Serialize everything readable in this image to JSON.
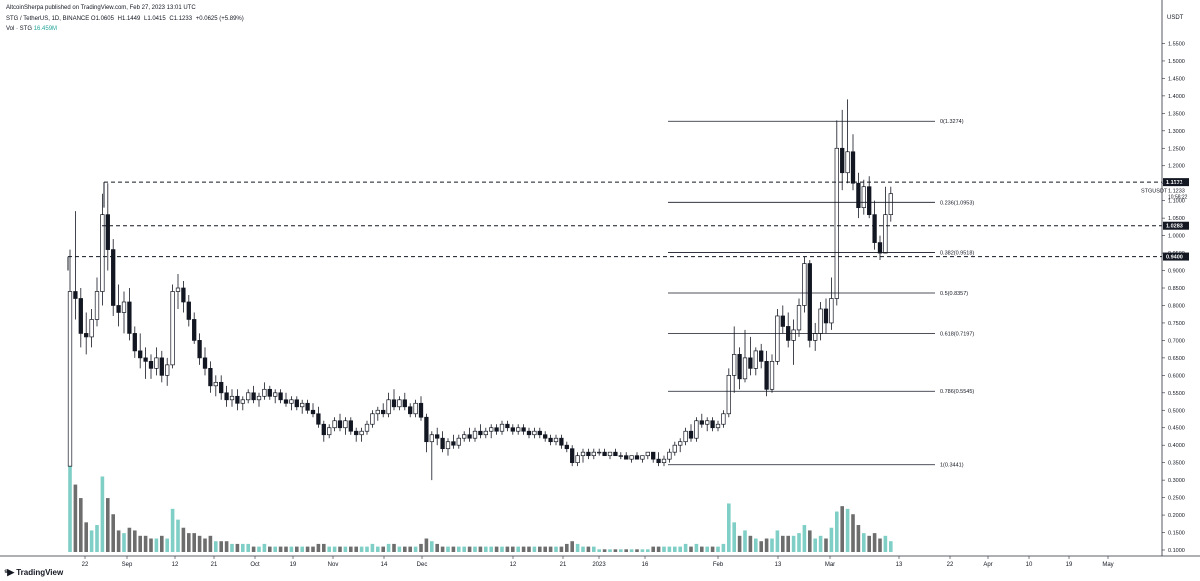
{
  "header": {
    "published_line": "AltcoinSherpa published on TradingView.com, Feb 27, 2023 13:01 UTC",
    "symbol_line": "STG / TetherUS, 1D, BINANCE",
    "ohlc": {
      "open": "O1.0605",
      "high": "H1.1449",
      "low": "L1.0415",
      "close": "C1.1233",
      "change": "+0.0625 (+5.89%)"
    },
    "volume_label": "Vol · STG",
    "volume_value": "16.459M"
  },
  "price_axis": {
    "currency": "USDT",
    "labels": [
      "1.5500",
      "1.5000",
      "1.4500",
      "1.4000",
      "1.3500",
      "1.3000",
      "1.2500",
      "1.2000",
      "1.1500",
      "1.1000",
      "1.0500",
      "1.0000",
      "0.9500",
      "0.9000",
      "0.8500",
      "0.8000",
      "0.7500",
      "0.7000",
      "0.6500",
      "0.6000",
      "0.5500",
      "0.5000",
      "0.4500",
      "0.4000",
      "0.3500",
      "0.3000",
      "0.2500",
      "0.2000",
      "0.1500",
      "0.1000"
    ],
    "last_price_label": "STGUSDT",
    "last_price": "1.1233",
    "countdown": "10:58:22",
    "levels": [
      {
        "price": 1.1531,
        "label": "1.1531"
      },
      {
        "price": 1.0283,
        "label": "1.0283"
      },
      {
        "price": 0.94,
        "label": "0.9400"
      }
    ]
  },
  "time_axis": {
    "labels": [
      "22",
      "Sep",
      "12",
      "21",
      "Oct",
      "19",
      "Nov",
      "14",
      "Dec",
      "12",
      "21",
      "2023",
      "16",
      "Feb",
      "13",
      "Mar",
      "13",
      "22",
      "Apr",
      "10",
      "19",
      "May"
    ]
  },
  "fibonacci": [
    {
      "ratio": 0,
      "price": 1.3274,
      "label": "0(1.3274)"
    },
    {
      "ratio": 0.236,
      "price": 1.0953,
      "label": "0.236(1.0953)"
    },
    {
      "ratio": 0.382,
      "price": 0.9518,
      "label": "0.382(0.9518)"
    },
    {
      "ratio": 0.5,
      "price": 0.8357,
      "label": "0.5(0.8357)"
    },
    {
      "ratio": 0.618,
      "price": 0.7197,
      "label": "0.618(0.7197)"
    },
    {
      "ratio": 0.786,
      "price": 0.5545,
      "label": "0.786(0.5545)"
    },
    {
      "ratio": 1,
      "price": 0.3441,
      "label": "1(0.3441)"
    }
  ],
  "chart_data": {
    "type": "candlestick",
    "symbol": "STG / TetherUS",
    "interval": "1D",
    "y_range": [
      0.1,
      1.58
    ],
    "candles": [
      {
        "o": 0.34,
        "h": 0.96,
        "l": 0.34,
        "c": 0.84,
        "v": 0.33
      },
      {
        "o": 0.84,
        "h": 1.07,
        "l": 0.76,
        "c": 0.82,
        "v": 0.25
      },
      {
        "o": 0.82,
        "h": 0.85,
        "l": 0.68,
        "c": 0.72,
        "v": 0.2
      },
      {
        "o": 0.72,
        "h": 0.78,
        "l": 0.66,
        "c": 0.71,
        "v": 0.11
      },
      {
        "o": 0.71,
        "h": 0.79,
        "l": 0.68,
        "c": 0.76,
        "v": 0.08
      },
      {
        "o": 0.76,
        "h": 0.88,
        "l": 0.74,
        "c": 0.84,
        "v": 0.1
      },
      {
        "o": 0.84,
        "h": 1.12,
        "l": 0.8,
        "c": 1.06,
        "v": 0.28
      },
      {
        "o": 1.06,
        "h": 1.15,
        "l": 0.9,
        "c": 0.96,
        "v": 0.2
      },
      {
        "o": 0.96,
        "h": 0.99,
        "l": 0.77,
        "c": 0.8,
        "v": 0.14
      },
      {
        "o": 0.8,
        "h": 0.86,
        "l": 0.74,
        "c": 0.78,
        "v": 0.08
      },
      {
        "o": 0.78,
        "h": 0.84,
        "l": 0.72,
        "c": 0.81,
        "v": 0.07
      },
      {
        "o": 0.81,
        "h": 0.85,
        "l": 0.7,
        "c": 0.72,
        "v": 0.09
      },
      {
        "o": 0.72,
        "h": 0.74,
        "l": 0.65,
        "c": 0.67,
        "v": 0.08
      },
      {
        "o": 0.67,
        "h": 0.72,
        "l": 0.62,
        "c": 0.65,
        "v": 0.06
      },
      {
        "o": 0.65,
        "h": 0.68,
        "l": 0.59,
        "c": 0.64,
        "v": 0.06
      },
      {
        "o": 0.64,
        "h": 0.66,
        "l": 0.59,
        "c": 0.62,
        "v": 0.05
      },
      {
        "o": 0.62,
        "h": 0.68,
        "l": 0.6,
        "c": 0.65,
        "v": 0.05
      },
      {
        "o": 0.65,
        "h": 0.67,
        "l": 0.58,
        "c": 0.6,
        "v": 0.06
      },
      {
        "o": 0.6,
        "h": 0.65,
        "l": 0.57,
        "c": 0.63,
        "v": 0.05
      },
      {
        "o": 0.63,
        "h": 0.86,
        "l": 0.62,
        "c": 0.84,
        "v": 0.16
      },
      {
        "o": 0.84,
        "h": 0.89,
        "l": 0.79,
        "c": 0.85,
        "v": 0.12
      },
      {
        "o": 0.85,
        "h": 0.87,
        "l": 0.78,
        "c": 0.81,
        "v": 0.09
      },
      {
        "o": 0.81,
        "h": 0.83,
        "l": 0.74,
        "c": 0.76,
        "v": 0.07
      },
      {
        "o": 0.76,
        "h": 0.78,
        "l": 0.69,
        "c": 0.7,
        "v": 0.07
      },
      {
        "o": 0.7,
        "h": 0.72,
        "l": 0.63,
        "c": 0.65,
        "v": 0.06
      },
      {
        "o": 0.65,
        "h": 0.68,
        "l": 0.6,
        "c": 0.62,
        "v": 0.05
      },
      {
        "o": 0.62,
        "h": 0.64,
        "l": 0.55,
        "c": 0.57,
        "v": 0.06
      },
      {
        "o": 0.57,
        "h": 0.6,
        "l": 0.54,
        "c": 0.58,
        "v": 0.04
      },
      {
        "o": 0.58,
        "h": 0.6,
        "l": 0.53,
        "c": 0.55,
        "v": 0.04
      },
      {
        "o": 0.55,
        "h": 0.57,
        "l": 0.51,
        "c": 0.53,
        "v": 0.04
      },
      {
        "o": 0.53,
        "h": 0.56,
        "l": 0.51,
        "c": 0.54,
        "v": 0.03
      },
      {
        "o": 0.54,
        "h": 0.56,
        "l": 0.5,
        "c": 0.52,
        "v": 0.03
      },
      {
        "o": 0.52,
        "h": 0.54,
        "l": 0.5,
        "c": 0.53,
        "v": 0.03
      },
      {
        "o": 0.53,
        "h": 0.56,
        "l": 0.52,
        "c": 0.55,
        "v": 0.03
      },
      {
        "o": 0.55,
        "h": 0.57,
        "l": 0.52,
        "c": 0.53,
        "v": 0.02
      },
      {
        "o": 0.53,
        "h": 0.55,
        "l": 0.51,
        "c": 0.54,
        "v": 0.02
      },
      {
        "o": 0.54,
        "h": 0.58,
        "l": 0.53,
        "c": 0.56,
        "v": 0.03
      },
      {
        "o": 0.56,
        "h": 0.57,
        "l": 0.53,
        "c": 0.54,
        "v": 0.02
      },
      {
        "o": 0.54,
        "h": 0.56,
        "l": 0.52,
        "c": 0.55,
        "v": 0.02
      },
      {
        "o": 0.55,
        "h": 0.56,
        "l": 0.52,
        "c": 0.53,
        "v": 0.02
      },
      {
        "o": 0.53,
        "h": 0.55,
        "l": 0.51,
        "c": 0.52,
        "v": 0.02
      },
      {
        "o": 0.52,
        "h": 0.54,
        "l": 0.5,
        "c": 0.53,
        "v": 0.02
      },
      {
        "o": 0.53,
        "h": 0.54,
        "l": 0.5,
        "c": 0.51,
        "v": 0.02
      },
      {
        "o": 0.51,
        "h": 0.53,
        "l": 0.49,
        "c": 0.52,
        "v": 0.02
      },
      {
        "o": 0.52,
        "h": 0.53,
        "l": 0.49,
        "c": 0.5,
        "v": 0.02
      },
      {
        "o": 0.5,
        "h": 0.52,
        "l": 0.48,
        "c": 0.49,
        "v": 0.02
      },
      {
        "o": 0.49,
        "h": 0.51,
        "l": 0.45,
        "c": 0.46,
        "v": 0.03
      },
      {
        "o": 0.46,
        "h": 0.47,
        "l": 0.41,
        "c": 0.43,
        "v": 0.03
      },
      {
        "o": 0.43,
        "h": 0.46,
        "l": 0.42,
        "c": 0.45,
        "v": 0.02
      },
      {
        "o": 0.45,
        "h": 0.48,
        "l": 0.44,
        "c": 0.47,
        "v": 0.02
      },
      {
        "o": 0.47,
        "h": 0.49,
        "l": 0.44,
        "c": 0.45,
        "v": 0.02
      },
      {
        "o": 0.45,
        "h": 0.48,
        "l": 0.43,
        "c": 0.47,
        "v": 0.02
      },
      {
        "o": 0.47,
        "h": 0.48,
        "l": 0.43,
        "c": 0.44,
        "v": 0.02
      },
      {
        "o": 0.44,
        "h": 0.45,
        "l": 0.41,
        "c": 0.43,
        "v": 0.02
      },
      {
        "o": 0.43,
        "h": 0.45,
        "l": 0.41,
        "c": 0.44,
        "v": 0.02
      },
      {
        "o": 0.44,
        "h": 0.47,
        "l": 0.43,
        "c": 0.46,
        "v": 0.02
      },
      {
        "o": 0.46,
        "h": 0.5,
        "l": 0.45,
        "c": 0.49,
        "v": 0.03
      },
      {
        "o": 0.49,
        "h": 0.51,
        "l": 0.47,
        "c": 0.5,
        "v": 0.02
      },
      {
        "o": 0.5,
        "h": 0.52,
        "l": 0.48,
        "c": 0.49,
        "v": 0.02
      },
      {
        "o": 0.49,
        "h": 0.55,
        "l": 0.48,
        "c": 0.53,
        "v": 0.03
      },
      {
        "o": 0.53,
        "h": 0.56,
        "l": 0.5,
        "c": 0.51,
        "v": 0.03
      },
      {
        "o": 0.51,
        "h": 0.54,
        "l": 0.5,
        "c": 0.53,
        "v": 0.02
      },
      {
        "o": 0.53,
        "h": 0.55,
        "l": 0.5,
        "c": 0.51,
        "v": 0.02
      },
      {
        "o": 0.51,
        "h": 0.52,
        "l": 0.48,
        "c": 0.49,
        "v": 0.02
      },
      {
        "o": 0.49,
        "h": 0.53,
        "l": 0.48,
        "c": 0.52,
        "v": 0.02
      },
      {
        "o": 0.52,
        "h": 0.54,
        "l": 0.47,
        "c": 0.48,
        "v": 0.03
      },
      {
        "o": 0.48,
        "h": 0.49,
        "l": 0.38,
        "c": 0.41,
        "v": 0.05
      },
      {
        "o": 0.41,
        "h": 0.44,
        "l": 0.3,
        "c": 0.43,
        "v": 0.04
      },
      {
        "o": 0.43,
        "h": 0.45,
        "l": 0.4,
        "c": 0.42,
        "v": 0.03
      },
      {
        "o": 0.42,
        "h": 0.44,
        "l": 0.38,
        "c": 0.39,
        "v": 0.02
      },
      {
        "o": 0.39,
        "h": 0.42,
        "l": 0.37,
        "c": 0.41,
        "v": 0.02
      },
      {
        "o": 0.41,
        "h": 0.43,
        "l": 0.39,
        "c": 0.4,
        "v": 0.02
      },
      {
        "o": 0.4,
        "h": 0.43,
        "l": 0.39,
        "c": 0.42,
        "v": 0.02
      },
      {
        "o": 0.42,
        "h": 0.44,
        "l": 0.41,
        "c": 0.43,
        "v": 0.02
      },
      {
        "o": 0.43,
        "h": 0.45,
        "l": 0.41,
        "c": 0.42,
        "v": 0.02
      },
      {
        "o": 0.42,
        "h": 0.45,
        "l": 0.41,
        "c": 0.44,
        "v": 0.02
      },
      {
        "o": 0.44,
        "h": 0.46,
        "l": 0.42,
        "c": 0.43,
        "v": 0.02
      },
      {
        "o": 0.43,
        "h": 0.45,
        "l": 0.42,
        "c": 0.44,
        "v": 0.02
      },
      {
        "o": 0.44,
        "h": 0.46,
        "l": 0.42,
        "c": 0.45,
        "v": 0.02
      },
      {
        "o": 0.45,
        "h": 0.46,
        "l": 0.43,
        "c": 0.44,
        "v": 0.02
      },
      {
        "o": 0.44,
        "h": 0.47,
        "l": 0.43,
        "c": 0.46,
        "v": 0.02
      },
      {
        "o": 0.46,
        "h": 0.47,
        "l": 0.44,
        "c": 0.45,
        "v": 0.02
      },
      {
        "o": 0.45,
        "h": 0.46,
        "l": 0.43,
        "c": 0.44,
        "v": 0.02
      },
      {
        "o": 0.44,
        "h": 0.46,
        "l": 0.43,
        "c": 0.45,
        "v": 0.02
      },
      {
        "o": 0.45,
        "h": 0.46,
        "l": 0.43,
        "c": 0.44,
        "v": 0.02
      },
      {
        "o": 0.44,
        "h": 0.45,
        "l": 0.42,
        "c": 0.43,
        "v": 0.02
      },
      {
        "o": 0.43,
        "h": 0.45,
        "l": 0.42,
        "c": 0.44,
        "v": 0.02
      },
      {
        "o": 0.44,
        "h": 0.45,
        "l": 0.42,
        "c": 0.43,
        "v": 0.02
      },
      {
        "o": 0.43,
        "h": 0.44,
        "l": 0.41,
        "c": 0.42,
        "v": 0.02
      },
      {
        "o": 0.42,
        "h": 0.43,
        "l": 0.4,
        "c": 0.41,
        "v": 0.02
      },
      {
        "o": 0.41,
        "h": 0.43,
        "l": 0.4,
        "c": 0.42,
        "v": 0.02
      },
      {
        "o": 0.42,
        "h": 0.43,
        "l": 0.39,
        "c": 0.4,
        "v": 0.02
      },
      {
        "o": 0.4,
        "h": 0.41,
        "l": 0.38,
        "c": 0.39,
        "v": 0.03
      },
      {
        "o": 0.39,
        "h": 0.4,
        "l": 0.34,
        "c": 0.35,
        "v": 0.04
      },
      {
        "o": 0.35,
        "h": 0.38,
        "l": 0.34,
        "c": 0.37,
        "v": 0.03
      },
      {
        "o": 0.37,
        "h": 0.39,
        "l": 0.35,
        "c": 0.38,
        "v": 0.02
      },
      {
        "o": 0.38,
        "h": 0.39,
        "l": 0.36,
        "c": 0.37,
        "v": 0.02
      },
      {
        "o": 0.37,
        "h": 0.39,
        "l": 0.36,
        "c": 0.38,
        "v": 0.02
      },
      {
        "o": 0.38,
        "h": 0.39,
        "l": 0.37,
        "c": 0.38,
        "v": 0.01
      },
      {
        "o": 0.38,
        "h": 0.39,
        "l": 0.37,
        "c": 0.37,
        "v": 0.01
      },
      {
        "o": 0.37,
        "h": 0.38,
        "l": 0.36,
        "c": 0.38,
        "v": 0.01
      },
      {
        "o": 0.38,
        "h": 0.39,
        "l": 0.37,
        "c": 0.37,
        "v": 0.01
      },
      {
        "o": 0.37,
        "h": 0.38,
        "l": 0.36,
        "c": 0.37,
        "v": 0.01
      },
      {
        "o": 0.37,
        "h": 0.38,
        "l": 0.36,
        "c": 0.36,
        "v": 0.01
      },
      {
        "o": 0.36,
        "h": 0.37,
        "l": 0.35,
        "c": 0.37,
        "v": 0.01
      },
      {
        "o": 0.37,
        "h": 0.38,
        "l": 0.36,
        "c": 0.36,
        "v": 0.01
      },
      {
        "o": 0.36,
        "h": 0.37,
        "l": 0.35,
        "c": 0.37,
        "v": 0.01
      },
      {
        "o": 0.37,
        "h": 0.38,
        "l": 0.36,
        "c": 0.38,
        "v": 0.01
      },
      {
        "o": 0.38,
        "h": 0.38,
        "l": 0.35,
        "c": 0.36,
        "v": 0.02
      },
      {
        "o": 0.36,
        "h": 0.38,
        "l": 0.34,
        "c": 0.35,
        "v": 0.02
      },
      {
        "o": 0.35,
        "h": 0.37,
        "l": 0.34,
        "c": 0.36,
        "v": 0.02
      },
      {
        "o": 0.36,
        "h": 0.39,
        "l": 0.35,
        "c": 0.38,
        "v": 0.02
      },
      {
        "o": 0.38,
        "h": 0.41,
        "l": 0.37,
        "c": 0.4,
        "v": 0.02
      },
      {
        "o": 0.4,
        "h": 0.42,
        "l": 0.38,
        "c": 0.41,
        "v": 0.02
      },
      {
        "o": 0.41,
        "h": 0.45,
        "l": 0.4,
        "c": 0.44,
        "v": 0.03
      },
      {
        "o": 0.44,
        "h": 0.46,
        "l": 0.41,
        "c": 0.42,
        "v": 0.02
      },
      {
        "o": 0.42,
        "h": 0.48,
        "l": 0.41,
        "c": 0.47,
        "v": 0.03
      },
      {
        "o": 0.47,
        "h": 0.49,
        "l": 0.45,
        "c": 0.46,
        "v": 0.02
      },
      {
        "o": 0.46,
        "h": 0.48,
        "l": 0.44,
        "c": 0.47,
        "v": 0.02
      },
      {
        "o": 0.47,
        "h": 0.48,
        "l": 0.44,
        "c": 0.45,
        "v": 0.02
      },
      {
        "o": 0.45,
        "h": 0.47,
        "l": 0.44,
        "c": 0.46,
        "v": 0.02
      },
      {
        "o": 0.46,
        "h": 0.5,
        "l": 0.45,
        "c": 0.49,
        "v": 0.03
      },
      {
        "o": 0.49,
        "h": 0.62,
        "l": 0.48,
        "c": 0.6,
        "v": 0.18
      },
      {
        "o": 0.6,
        "h": 0.74,
        "l": 0.55,
        "c": 0.66,
        "v": 0.11
      },
      {
        "o": 0.66,
        "h": 0.68,
        "l": 0.56,
        "c": 0.59,
        "v": 0.06
      },
      {
        "o": 0.59,
        "h": 0.73,
        "l": 0.58,
        "c": 0.65,
        "v": 0.08
      },
      {
        "o": 0.65,
        "h": 0.71,
        "l": 0.6,
        "c": 0.62,
        "v": 0.06
      },
      {
        "o": 0.62,
        "h": 0.68,
        "l": 0.6,
        "c": 0.67,
        "v": 0.05
      },
      {
        "o": 0.67,
        "h": 0.69,
        "l": 0.62,
        "c": 0.64,
        "v": 0.04
      },
      {
        "o": 0.64,
        "h": 0.67,
        "l": 0.54,
        "c": 0.56,
        "v": 0.05
      },
      {
        "o": 0.56,
        "h": 0.66,
        "l": 0.55,
        "c": 0.64,
        "v": 0.05
      },
      {
        "o": 0.64,
        "h": 0.79,
        "l": 0.63,
        "c": 0.77,
        "v": 0.08
      },
      {
        "o": 0.77,
        "h": 0.8,
        "l": 0.72,
        "c": 0.74,
        "v": 0.06
      },
      {
        "o": 0.74,
        "h": 0.78,
        "l": 0.68,
        "c": 0.7,
        "v": 0.06
      },
      {
        "o": 0.7,
        "h": 0.76,
        "l": 0.63,
        "c": 0.73,
        "v": 0.06
      },
      {
        "o": 0.73,
        "h": 0.82,
        "l": 0.71,
        "c": 0.8,
        "v": 0.07
      },
      {
        "o": 0.8,
        "h": 0.94,
        "l": 0.78,
        "c": 0.92,
        "v": 0.1
      },
      {
        "o": 0.92,
        "h": 0.93,
        "l": 0.68,
        "c": 0.7,
        "v": 0.08
      },
      {
        "o": 0.7,
        "h": 0.75,
        "l": 0.67,
        "c": 0.72,
        "v": 0.05
      },
      {
        "o": 0.72,
        "h": 0.81,
        "l": 0.7,
        "c": 0.79,
        "v": 0.06
      },
      {
        "o": 0.79,
        "h": 0.82,
        "l": 0.72,
        "c": 0.75,
        "v": 0.05
      },
      {
        "o": 0.75,
        "h": 0.88,
        "l": 0.73,
        "c": 0.82,
        "v": 0.09
      },
      {
        "o": 0.82,
        "h": 1.33,
        "l": 0.8,
        "c": 1.25,
        "v": 0.15
      },
      {
        "o": 1.25,
        "h": 1.36,
        "l": 1.13,
        "c": 1.18,
        "v": 0.17
      },
      {
        "o": 1.18,
        "h": 1.39,
        "l": 1.15,
        "c": 1.24,
        "v": 0.16
      },
      {
        "o": 1.24,
        "h": 1.29,
        "l": 1.13,
        "c": 1.15,
        "v": 0.14
      },
      {
        "o": 1.15,
        "h": 1.18,
        "l": 1.05,
        "c": 1.08,
        "v": 0.1
      },
      {
        "o": 1.08,
        "h": 1.16,
        "l": 1.06,
        "c": 1.14,
        "v": 0.07
      },
      {
        "o": 1.14,
        "h": 1.17,
        "l": 1.05,
        "c": 1.06,
        "v": 0.06
      },
      {
        "o": 1.06,
        "h": 1.1,
        "l": 0.96,
        "c": 0.98,
        "v": 0.07
      },
      {
        "o": 0.98,
        "h": 1.0,
        "l": 0.93,
        "c": 0.95,
        "v": 0.05
      },
      {
        "o": 0.95,
        "h": 1.14,
        "l": 0.95,
        "c": 1.06,
        "v": 0.06
      },
      {
        "o": 1.06,
        "h": 1.14,
        "l": 1.04,
        "c": 1.12,
        "v": 0.04
      }
    ]
  }
}
